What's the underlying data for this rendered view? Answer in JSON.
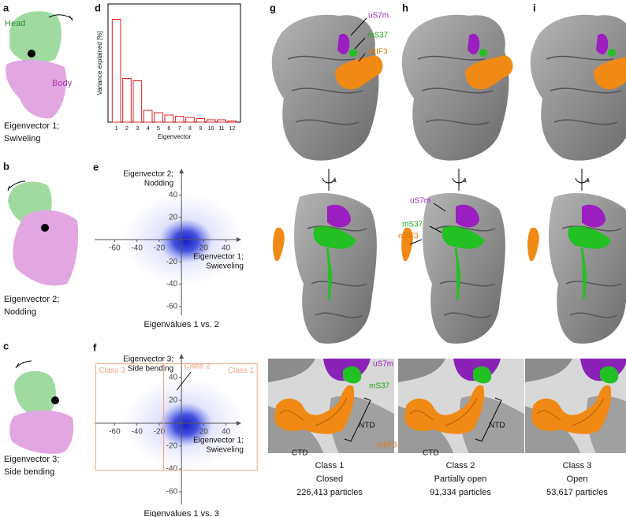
{
  "panel_labels": [
    "a",
    "b",
    "c",
    "d",
    "e",
    "f",
    "g",
    "h",
    "i"
  ],
  "left_panels": [
    {
      "annotations": [
        "Head",
        "Body"
      ],
      "caption": [
        "Eigenvector 1;",
        "Swiveling"
      ]
    },
    {
      "caption": [
        "Eigenvector 2;",
        "Nodding"
      ]
    },
    {
      "caption": [
        "Eigenvector 3;",
        "Side bending"
      ]
    }
  ],
  "chart_data": [
    {
      "type": "bar",
      "y_label": "Variance explained [%]",
      "x_label": "Eigenvector",
      "categories": [
        "1",
        "2",
        "3",
        "4",
        "5",
        "6",
        "7",
        "8",
        "9",
        "10",
        "11",
        "12"
      ],
      "values": [
        43.5,
        18.5,
        17.5,
        5,
        4,
        3,
        2.5,
        2,
        1.5,
        1,
        1,
        0.5
      ],
      "color": "#e02020",
      "ylim": [
        0,
        50
      ]
    },
    {
      "type": "scatter",
      "title": "Eigenvalues 1 vs. 2",
      "x_label": [
        "Eigenvector 1;",
        "Swieveling"
      ],
      "y_label": [
        "Eigenvector 2;",
        "Nodding"
      ],
      "xlim": [
        -78,
        53
      ],
      "ylim": [
        -68,
        63
      ],
      "xticks": [
        -60,
        -40,
        -20,
        20,
        40
      ],
      "yticks": [
        40,
        20,
        -20,
        -40,
        -60
      ],
      "color": "#1f2fd0"
    },
    {
      "type": "scatter",
      "title": "Eigenvalues 1 vs. 3",
      "x_label": [
        "Eigenvector 1;",
        "Swieveling"
      ],
      "y_label": [
        "Eigenvector 3;",
        "Side bending"
      ],
      "xlim": [
        -78,
        53
      ],
      "ylim": [
        -71,
        60
      ],
      "xticks": [
        -60,
        -40,
        -20,
        20,
        40
      ],
      "yticks": [
        40,
        20,
        -20,
        -40,
        -60
      ],
      "color": "#1f2fd0",
      "regions": [
        {
          "name": "Class 3",
          "xlim": [
            -77,
            -16
          ],
          "ylim": [
            -41,
            52
          ]
        },
        {
          "name": "Class 1",
          "xlim": [
            -16,
            68
          ],
          "ylim": [
            -41,
            52
          ]
        }
      ],
      "annotations": [
        "Class 2"
      ],
      "region_color": "#f4a582"
    }
  ],
  "structures": {
    "top_labels": [
      "uS7m",
      "mS37",
      "mtIF3"
    ],
    "middle_labels": [
      "uS7m",
      "mS37",
      "mtIF3"
    ],
    "bottom_g": [
      "uS7m",
      "mS37",
      "NTD",
      "mtIF3",
      "CTD"
    ],
    "bottom_h": [
      "CTD",
      "NTD"
    ],
    "classes": [
      {
        "name": "Class 1",
        "state": "Closed",
        "particles": "226,413 particles"
      },
      {
        "name": "Class 2",
        "state": "Partially open",
        "particles": "91,334 particles"
      },
      {
        "name": "Class 3",
        "state": "Open",
        "particles": "53,617 particles"
      }
    ]
  }
}
